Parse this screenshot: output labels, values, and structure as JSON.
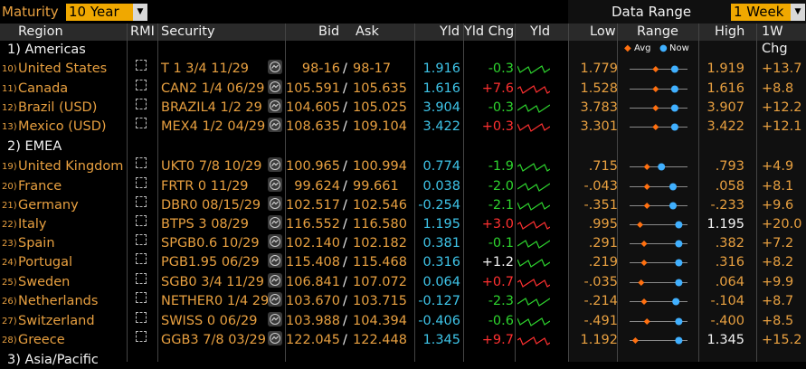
{
  "toolbar": {
    "maturity_label": "Maturity",
    "maturity_value": "10 Year",
    "range_label": "Data Range",
    "range_value": "1 Week"
  },
  "headers": {
    "region": "Region",
    "rmi": "RMI",
    "security": "Security",
    "bid": "Bid",
    "ask": "Ask",
    "yld": "Yld",
    "yld_chg": "Yld Chg",
    "yld_chart": "Yld",
    "low": "Low",
    "range": "Range",
    "high": "High",
    "w1_chg": "1W Chg",
    "legend_avg": "Avg",
    "legend_now": "Now"
  },
  "sections": [
    {
      "label": "1) Americas"
    },
    {
      "label": "2) EMEA"
    },
    {
      "label": "3) Asia/Pacific"
    }
  ],
  "rows": [
    {
      "num": "10)",
      "region": "United States",
      "security": "T 1 3/4 11/29",
      "bid": "98-16",
      "ask": "98-17",
      "yld": "1.916",
      "chg": "-0.3",
      "low": "1.779",
      "high": "1.919",
      "w1": "+13.7",
      "chg_color": "green",
      "avg": 0.45,
      "now": 0.78
    },
    {
      "num": "11)",
      "region": "Canada",
      "security": "CAN2 1/4 06/29",
      "bid": "105.591",
      "ask": "105.635",
      "yld": "1.616",
      "chg": "+7.6",
      "low": "1.528",
      "high": "1.616",
      "w1": "+8.8",
      "chg_color": "red",
      "avg": 0.45,
      "now": 0.78
    },
    {
      "num": "12)",
      "region": "Brazil (USD)",
      "security": "BRAZIL4 1/2 29",
      "bid": "104.605",
      "ask": "105.025",
      "yld": "3.904",
      "chg": "-0.3",
      "low": "3.783",
      "high": "3.907",
      "w1": "+12.2",
      "chg_color": "green",
      "avg": 0.45,
      "now": 0.78
    },
    {
      "num": "13)",
      "region": "Mexico (USD)",
      "security": "MEX4 1/2 04/29",
      "bid": "108.635",
      "ask": "109.104",
      "yld": "3.422",
      "chg": "+0.3",
      "low": "3.301",
      "high": "3.422",
      "w1": "+12.1",
      "chg_color": "red",
      "avg": 0.45,
      "now": 0.78
    },
    {
      "num": "19)",
      "region": "United Kingdom",
      "security": "UKT0 7/8 10/29",
      "bid": "100.965",
      "ask": "100.994",
      "yld": "0.774",
      "chg": "-1.9",
      "low": ".715",
      "high": ".793",
      "w1": "+4.9",
      "chg_color": "green",
      "avg": 0.3,
      "now": 0.55
    },
    {
      "num": "20)",
      "region": "France",
      "security": "FRTR 0 11/29",
      "bid": "99.624",
      "ask": "99.661",
      "yld": "0.038",
      "chg": "-2.0",
      "low": "-.043",
      "high": ".058",
      "w1": "+8.1",
      "chg_color": "green",
      "avg": 0.3,
      "now": 0.75
    },
    {
      "num": "21)",
      "region": "Germany",
      "security": "DBR0 08/15/29",
      "bid": "102.517",
      "ask": "102.546",
      "yld": "-0.254",
      "chg": "-2.1",
      "low": "-.351",
      "high": "-.233",
      "w1": "+9.6",
      "chg_color": "green",
      "avg": 0.3,
      "now": 0.75
    },
    {
      "num": "22)",
      "region": "Italy",
      "security": "BTPS 3 08/29",
      "bid": "116.552",
      "ask": "116.580",
      "yld": "1.195",
      "chg": "+3.0",
      "low": ".995",
      "high": "1.195",
      "w1": "+20.0",
      "chg_color": "red",
      "avg": 0.18,
      "now": 0.85
    },
    {
      "num": "23)",
      "region": "Spain",
      "security": "SPGB0.6 10/29",
      "bid": "102.140",
      "ask": "102.182",
      "yld": "0.381",
      "chg": "-0.1",
      "low": ".291",
      "high": ".382",
      "w1": "+7.2",
      "chg_color": "green",
      "avg": 0.25,
      "now": 0.85
    },
    {
      "num": "24)",
      "region": "Portugal",
      "security": "PGB1.95 06/29",
      "bid": "115.408",
      "ask": "115.468",
      "yld": "0.316",
      "chg": "+1.2",
      "low": ".219",
      "high": ".316",
      "w1": "+8.2",
      "chg_color": "white",
      "avg": 0.25,
      "now": 0.85
    },
    {
      "num": "25)",
      "region": "Sweden",
      "security": "SGB0 3/4 11/29",
      "bid": "106.841",
      "ask": "107.072",
      "yld": "0.064",
      "chg": "+0.7",
      "low": "-.035",
      "high": ".064",
      "w1": "+9.9",
      "chg_color": "red",
      "avg": 0.2,
      "now": 0.85
    },
    {
      "num": "26)",
      "region": "Netherlands",
      "security": "NETHER0 1/4 29",
      "bid": "103.670",
      "ask": "103.715",
      "yld": "-0.127",
      "chg": "-2.3",
      "low": "-.214",
      "high": "-.104",
      "w1": "+8.7",
      "chg_color": "green",
      "avg": 0.25,
      "now": 0.8
    },
    {
      "num": "27)",
      "region": "Switzerland",
      "security": "SWISS 0 06/29",
      "bid": "103.988",
      "ask": "104.394",
      "yld": "-0.406",
      "chg": "-0.6",
      "low": "-.491",
      "high": "-.400",
      "w1": "+8.5",
      "chg_color": "green",
      "avg": 0.3,
      "now": 0.85
    },
    {
      "num": "28)",
      "region": "Greece",
      "security": "GGB3 7/8 03/29",
      "bid": "122.045",
      "ask": "122.448",
      "yld": "1.345",
      "chg": "+9.7",
      "low": "1.192",
      "high": "1.345",
      "w1": "+15.2",
      "chg_color": "red",
      "avg": 0.1,
      "now": 0.85
    }
  ],
  "colors": {
    "orange": "#e8a040",
    "cyan": "#3ec4e8",
    "green": "#2ed42e",
    "red": "#ff3030",
    "white": "#f2f2f2",
    "dropdown": "#f0a800",
    "header_bg": "#2a2a2a"
  },
  "icons": {
    "rmi": "checkbox-icon",
    "chart": "chart-icon",
    "dropdown": "chevron-down-icon",
    "avg_marker": "diamond-icon",
    "now_marker": "circle-icon"
  }
}
